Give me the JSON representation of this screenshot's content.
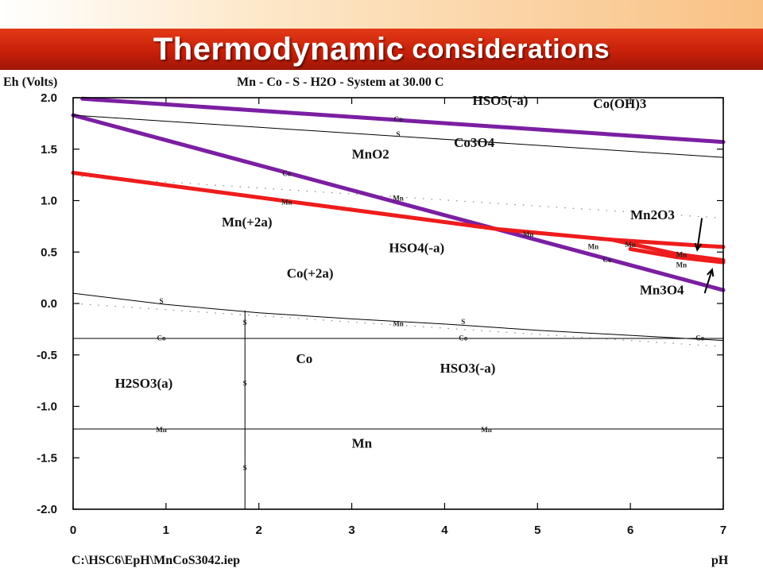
{
  "title": {
    "part1": "Thermodynamic",
    "part2": "considerations"
  },
  "colors": {
    "title_band": "#c8200a",
    "purple_line": "#7b1fa2",
    "red_line": "#ee1c1c",
    "black_line": "#000000"
  },
  "chart_data": {
    "type": "line",
    "title": "Mn - Co - S - H2O - System at 30.00 C",
    "xlabel": "pH",
    "ylabel": "Eh (Volts)",
    "footer": "C:\\HSC6\\EpH\\MnCoS3042.iep",
    "xlim": [
      0,
      7
    ],
    "ylim": [
      -2.0,
      2.0
    ],
    "x_ticks": [
      "0",
      "1",
      "2",
      "3",
      "4",
      "5",
      "6",
      "7"
    ],
    "y_ticks": [
      "2.0",
      "1.5",
      "1.0",
      "0.5",
      "0.0",
      "-0.5",
      "-1.0",
      "-1.5",
      "-2.0"
    ],
    "series": [
      {
        "style": "purple",
        "points": [
          [
            0.1,
            1.99
          ],
          [
            7.0,
            1.57
          ]
        ]
      },
      {
        "style": "purple",
        "points": [
          [
            0.0,
            1.83
          ],
          [
            7.0,
            0.13
          ]
        ]
      },
      {
        "style": "red",
        "points": [
          [
            0.0,
            1.27
          ],
          [
            4.6,
            0.72
          ],
          [
            5.8,
            0.62
          ],
          [
            6.8,
            0.56
          ],
          [
            7.0,
            0.55
          ]
        ]
      },
      {
        "style": "red",
        "points": [
          [
            5.8,
            0.62
          ],
          [
            6.5,
            0.48
          ],
          [
            7.0,
            0.42
          ]
        ]
      },
      {
        "style": "red",
        "points": [
          [
            6.0,
            0.53
          ],
          [
            6.5,
            0.45
          ],
          [
            7.0,
            0.4
          ]
        ]
      },
      {
        "style": "black",
        "points": [
          [
            0.0,
            1.83
          ],
          [
            7.0,
            1.42
          ]
        ]
      },
      {
        "style": "black",
        "points": [
          [
            0.0,
            0.1
          ],
          [
            1.0,
            -0.01
          ],
          [
            2.0,
            -0.09
          ],
          [
            3.0,
            -0.15
          ],
          [
            4.0,
            -0.2
          ],
          [
            5.0,
            -0.26
          ],
          [
            6.0,
            -0.31
          ],
          [
            7.0,
            -0.36
          ]
        ]
      },
      {
        "style": "black",
        "points": [
          [
            0.0,
            -0.34
          ],
          [
            7.0,
            -0.34
          ]
        ]
      },
      {
        "style": "black",
        "points": [
          [
            0.0,
            -1.22
          ],
          [
            7.0,
            -1.22
          ]
        ]
      },
      {
        "style": "black",
        "points": [
          [
            1.85,
            -0.07
          ],
          [
            1.85,
            -2.0
          ]
        ]
      }
    ],
    "region_labels": [
      {
        "text": "HSO5(-a)",
        "x": 4.3,
        "y": 1.93
      },
      {
        "text": "Co(OH)3",
        "x": 5.6,
        "y": 1.9
      },
      {
        "text": "Co3O4",
        "x": 4.1,
        "y": 1.52
      },
      {
        "text": "MnO2",
        "x": 3.0,
        "y": 1.41
      },
      {
        "text": "Mn2O3",
        "x": 6.0,
        "y": 0.82
      },
      {
        "text": "Mn(+2a)",
        "x": 1.6,
        "y": 0.75
      },
      {
        "text": "HSO4(-a)",
        "x": 3.4,
        "y": 0.5
      },
      {
        "text": "Co(+2a)",
        "x": 2.3,
        "y": 0.25
      },
      {
        "text": "Mn3O4",
        "x": 6.1,
        "y": 0.09
      },
      {
        "text": "Co",
        "x": 2.4,
        "y": -0.58
      },
      {
        "text": "HSO3(-a)",
        "x": 3.95,
        "y": -0.67
      },
      {
        "text": "H2SO3(a)",
        "x": 0.45,
        "y": -0.82
      },
      {
        "text": "Mn",
        "x": 3.0,
        "y": -1.4
      }
    ],
    "small_labels": [
      {
        "text": "Co",
        "x": 3.5,
        "y": 1.77
      },
      {
        "text": "S",
        "x": 3.5,
        "y": 1.62
      },
      {
        "text": "Co",
        "x": 2.3,
        "y": 1.24
      },
      {
        "text": "Mn",
        "x": 2.3,
        "y": 0.96
      },
      {
        "text": "Mn",
        "x": 3.5,
        "y": 1.0
      },
      {
        "text": "Mn",
        "x": 4.9,
        "y": 0.65
      },
      {
        "text": "Mn",
        "x": 5.6,
        "y": 0.53
      },
      {
        "text": "Mn",
        "x": 6.0,
        "y": 0.55
      },
      {
        "text": "Co",
        "x": 5.75,
        "y": 0.4
      },
      {
        "text": "Mn",
        "x": 6.55,
        "y": 0.45
      },
      {
        "text": "Mn",
        "x": 6.55,
        "y": 0.35
      },
      {
        "text": "S",
        "x": 0.95,
        "y": 0.0
      },
      {
        "text": "S",
        "x": 1.85,
        "y": -0.21
      },
      {
        "text": "Mn",
        "x": 3.5,
        "y": -0.22
      },
      {
        "text": "S",
        "x": 4.2,
        "y": -0.2
      },
      {
        "text": "Co",
        "x": 0.95,
        "y": -0.36
      },
      {
        "text": "Co",
        "x": 4.2,
        "y": -0.36
      },
      {
        "text": "Co",
        "x": 6.75,
        "y": -0.36
      },
      {
        "text": "S",
        "x": 1.85,
        "y": -0.8
      },
      {
        "text": "Mn",
        "x": 0.95,
        "y": -1.25
      },
      {
        "text": "Mn",
        "x": 4.45,
        "y": -1.25
      },
      {
        "text": "S",
        "x": 1.85,
        "y": -1.62
      }
    ]
  }
}
